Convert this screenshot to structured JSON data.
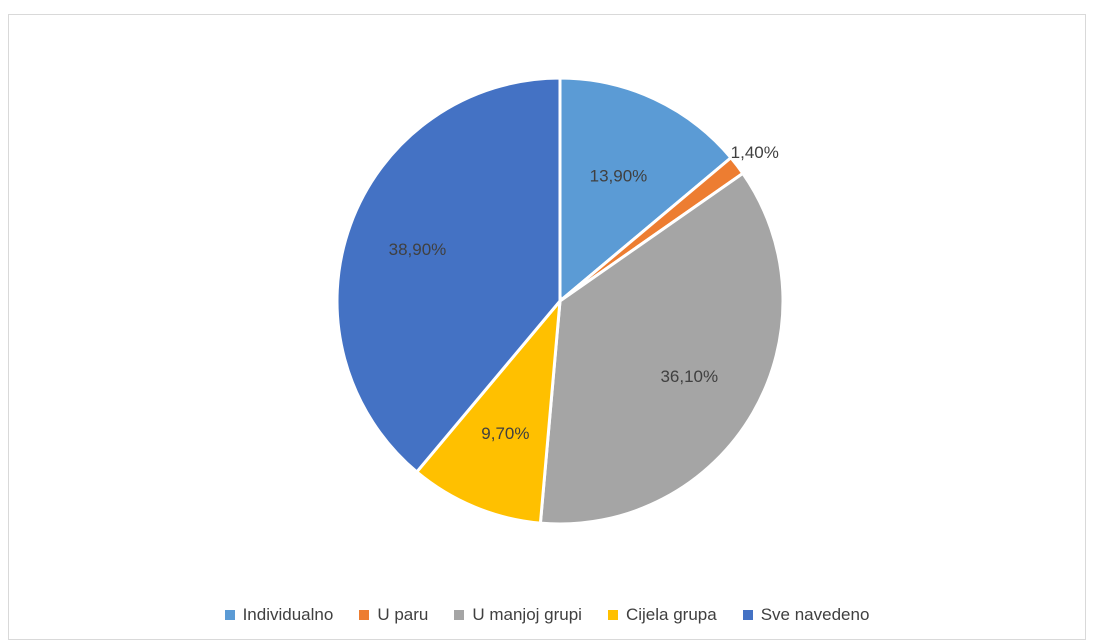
{
  "chart_data": {
    "type": "pie",
    "title": "",
    "legend_position": "bottom",
    "slices": [
      {
        "label": "Individualno",
        "value": 13.9,
        "display": "13,90%",
        "color": "#5b9bd5"
      },
      {
        "label": "U paru",
        "value": 1.4,
        "display": "1,40%",
        "color": "#ed7d31"
      },
      {
        "label": "U manjoj grupi",
        "value": 36.1,
        "display": "36,10%",
        "color": "#a5a5a5"
      },
      {
        "label": "Cijela grupa",
        "value": 9.7,
        "display": "9,70%",
        "color": "#ffc000"
      },
      {
        "label": "Sve navedeno",
        "value": 38.9,
        "display": "38,90%",
        "color": "#4472c4"
      }
    ]
  }
}
